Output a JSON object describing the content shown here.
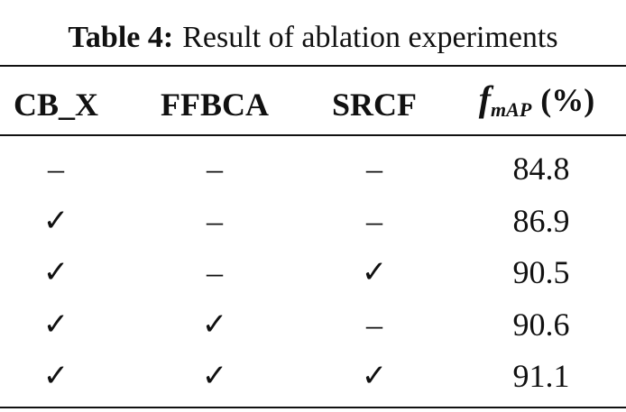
{
  "caption": {
    "label": "Table 4:",
    "text": "Result of ablation experiments"
  },
  "table": {
    "header": [
      "CB_X",
      "FFBCA",
      "SRCF",
      {
        "symbol": "f",
        "subscript": "mAP",
        "unit": "(%)"
      }
    ],
    "rows": [
      [
        "–",
        "–",
        "–",
        84.8
      ],
      [
        "✓",
        "–",
        "–",
        86.9
      ],
      [
        "✓",
        "–",
        "✓",
        90.5
      ],
      [
        "✓",
        "✓",
        "–",
        90.6
      ],
      [
        "✓",
        "✓",
        "✓",
        91.1
      ]
    ]
  }
}
